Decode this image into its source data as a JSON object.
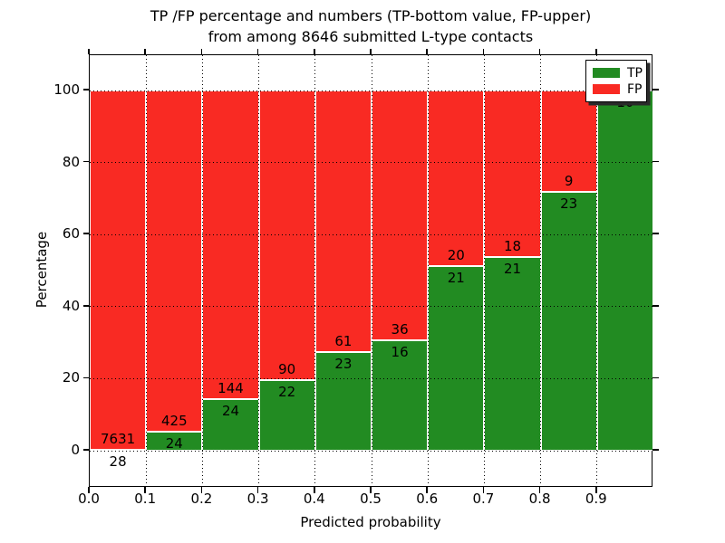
{
  "figure": {
    "title_line1": "TP /FP percentage and numbers (TP-bottom value, FP-upper)",
    "title_line2": "from among 8646 submitted L-type contacts",
    "xlabel": "Predicted probability",
    "ylabel": "Percentage"
  },
  "legend": {
    "position": "upper right",
    "items": [
      {
        "label": "TP",
        "color": "#228b22"
      },
      {
        "label": "FP",
        "color": "#f92a23"
      }
    ]
  },
  "axes": {
    "x_tick_labels": [
      "0.0",
      "0.1",
      "0.2",
      "0.3",
      "0.4",
      "0.5",
      "0.6",
      "0.7",
      "0.8",
      "0.9"
    ],
    "y_tick_labels": [
      "0",
      "20",
      "40",
      "60",
      "80",
      "100"
    ],
    "y_tick_values": [
      0,
      20,
      40,
      60,
      80,
      100
    ],
    "xlim": [
      0.0,
      1.0
    ],
    "ylim": [
      -10.5,
      110
    ],
    "grid": "dotted"
  },
  "chart_data": {
    "type": "bar",
    "stacked": true,
    "title": "TP /FP percentage and numbers (TP-bottom value, FP-upper) from among 8646 submitted L-type contacts",
    "xlabel": "Predicted probability",
    "ylabel": "Percentage",
    "total_contacts": 8646,
    "colors": {
      "tp": "#228b22",
      "fp": "#f92a23"
    },
    "bins": [
      {
        "x_range": "0.0-0.1",
        "tp_count": 28,
        "fp_count": 7631,
        "tp_pct": 0.37,
        "fp_pct": 99.63,
        "fp_label_shown": true
      },
      {
        "x_range": "0.1-0.2",
        "tp_count": 24,
        "fp_count": 425,
        "tp_pct": 5.35,
        "fp_pct": 94.65,
        "fp_label_shown": true
      },
      {
        "x_range": "0.2-0.3",
        "tp_count": 24,
        "fp_count": 144,
        "tp_pct": 14.29,
        "fp_pct": 85.71,
        "fp_label_shown": true
      },
      {
        "x_range": "0.3-0.4",
        "tp_count": 22,
        "fp_count": 90,
        "tp_pct": 19.64,
        "fp_pct": 80.36,
        "fp_label_shown": true
      },
      {
        "x_range": "0.4-0.5",
        "tp_count": 23,
        "fp_count": 61,
        "tp_pct": 27.38,
        "fp_pct": 72.62,
        "fp_label_shown": true
      },
      {
        "x_range": "0.5-0.6",
        "tp_count": 16,
        "fp_count": 36,
        "tp_pct": 30.77,
        "fp_pct": 69.23,
        "fp_label_shown": true
      },
      {
        "x_range": "0.6-0.7",
        "tp_count": 21,
        "fp_count": 20,
        "tp_pct": 51.22,
        "fp_pct": 48.78,
        "fp_label_shown": true
      },
      {
        "x_range": "0.7-0.8",
        "tp_count": 21,
        "fp_count": 18,
        "tp_pct": 53.85,
        "fp_pct": 46.15,
        "fp_label_shown": true
      },
      {
        "x_range": "0.8-0.9",
        "tp_count": 23,
        "fp_count": 9,
        "tp_pct": 71.88,
        "fp_pct": 28.12,
        "fp_label_shown": true
      },
      {
        "x_range": "0.9-1.0",
        "tp_count": 10,
        "fp_count": 0,
        "tp_pct": 100.0,
        "fp_pct": 0.0,
        "fp_label_shown": false
      }
    ]
  }
}
